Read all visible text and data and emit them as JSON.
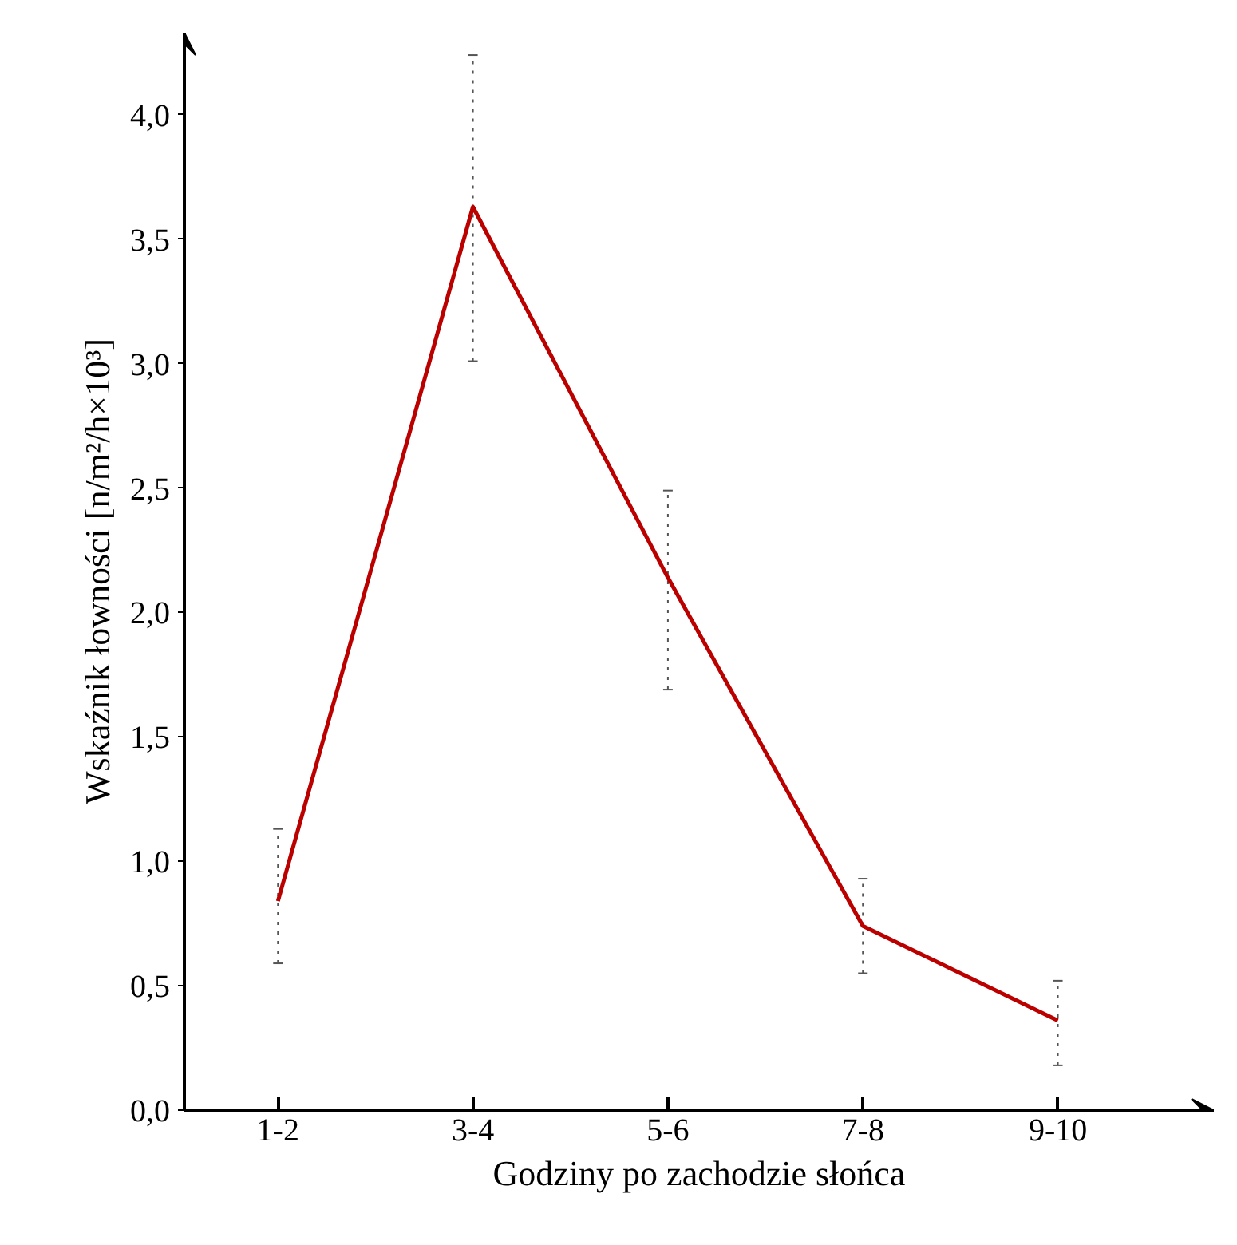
{
  "chart_data": {
    "type": "line",
    "xlabel": "Godziny po zachodzie słońca",
    "ylabel": "Wskaźnik łowności [n/m²/h×10³]",
    "categories": [
      "1-2",
      "3-4",
      "5-6",
      "7-8",
      "9-10"
    ],
    "series": [
      {
        "color": "#bb0000",
        "values": [
          0.84,
          3.63,
          2.14,
          0.74,
          0.36
        ],
        "errors": [
          [
            0.59,
            1.13
          ],
          [
            3.01,
            4.24
          ],
          [
            1.69,
            2.49
          ],
          [
            0.55,
            0.93
          ],
          [
            0.18,
            0.52
          ]
        ]
      }
    ],
    "ylim": [
      0,
      4.33
    ],
    "yticks": [
      {
        "value": 0,
        "label": "0,0"
      },
      {
        "value": 0.5,
        "label": "0,5"
      },
      {
        "value": 1,
        "label": "1,0"
      },
      {
        "value": 1.5,
        "label": "1,5"
      },
      {
        "value": 2,
        "label": "2,0"
      },
      {
        "value": 2.5,
        "label": "2,5"
      },
      {
        "value": 3,
        "label": "3,0"
      },
      {
        "value": 3.5,
        "label": "3,5"
      },
      {
        "value": 4,
        "label": "4,0"
      }
    ],
    "grid": false,
    "marker": "none",
    "line_style": "solid"
  }
}
